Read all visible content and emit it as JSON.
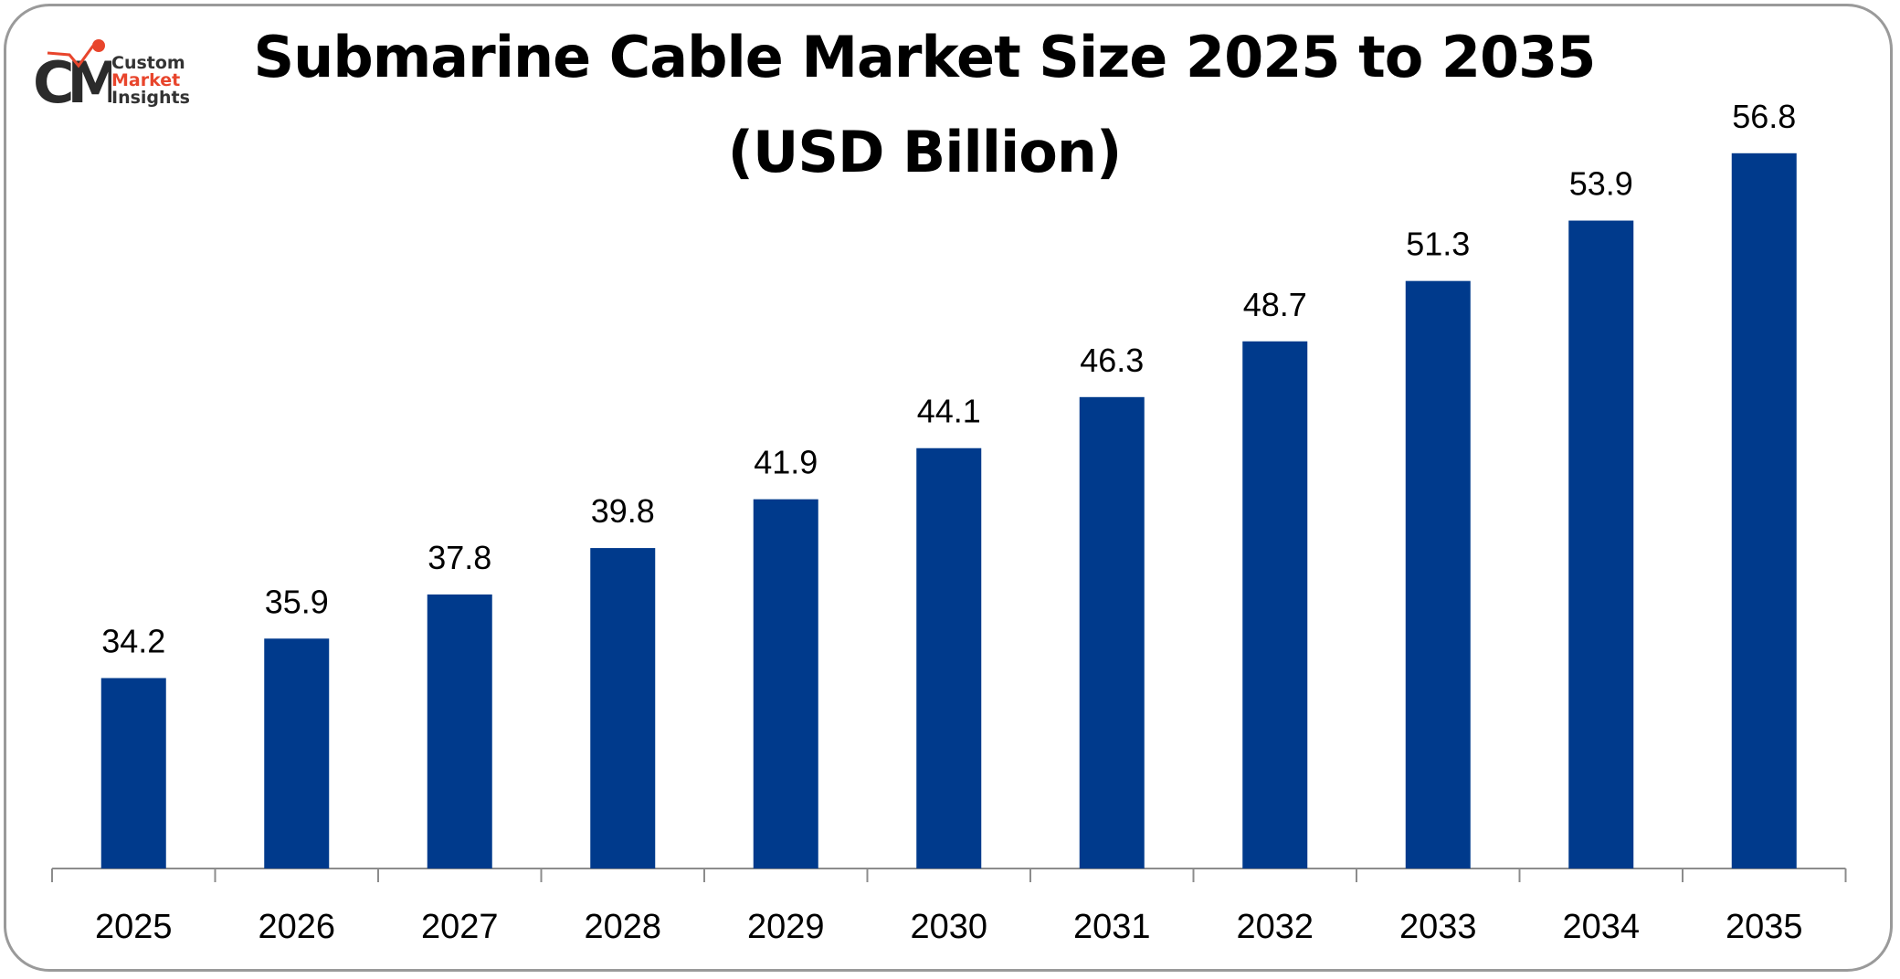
{
  "logo": {
    "line1": "Custom",
    "line2": "Market",
    "line3": "Insights"
  },
  "chart_data": {
    "type": "bar",
    "title": "Submarine Cable Market Size 2025 to 2035",
    "subtitle": "(USD Billion)",
    "categories": [
      "2025",
      "2026",
      "2027",
      "2028",
      "2029",
      "2030",
      "2031",
      "2032",
      "2033",
      "2034",
      "2035"
    ],
    "values": [
      34.2,
      35.9,
      37.8,
      39.8,
      41.9,
      44.1,
      46.3,
      48.7,
      51.3,
      53.9,
      56.8
    ],
    "xlabel": "",
    "ylabel": "",
    "ylim": [
      26,
      57.5
    ],
    "grid": false,
    "legend": "none",
    "bar_color": "#003A8C"
  }
}
